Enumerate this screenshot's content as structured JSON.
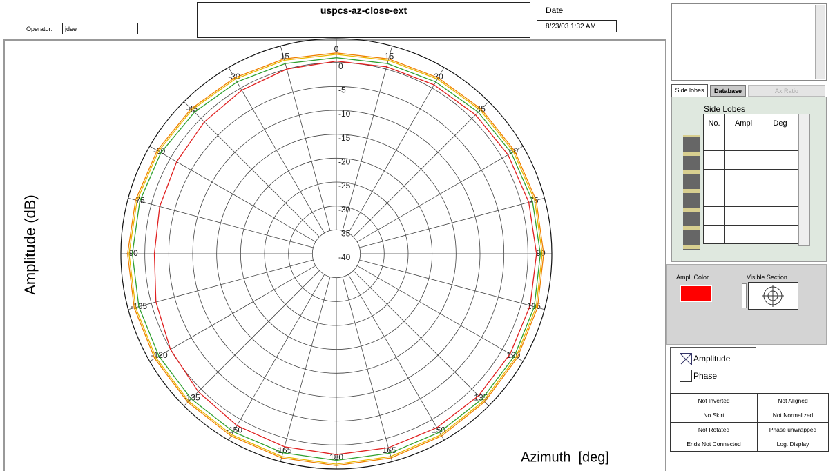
{
  "header": {
    "operator_label": "Operator:",
    "operator_value": "jdee",
    "title": "uspcs-az-close-ext",
    "date_label": "Date",
    "date_value": "8/23/03 1:32 AM"
  },
  "chart_data": {
    "type": "polar",
    "ylabel": "Amplitude (dB)",
    "xlabel": "Azimuth  [deg]",
    "rlim": [
      -40,
      5
    ],
    "rticks": [
      -40,
      -35,
      -30,
      -25,
      -20,
      -15,
      -10,
      -5,
      0
    ],
    "thetaticks": [
      0,
      15,
      30,
      45,
      60,
      75,
      90,
      105,
      120,
      135,
      150,
      165,
      180,
      -165,
      -150,
      -135,
      -120,
      -105,
      -90,
      -75,
      -60,
      -45,
      -30,
      -15
    ],
    "grid": true,
    "theta": [
      -180,
      -165,
      -150,
      -135,
      -120,
      -105,
      -90,
      -75,
      -60,
      -45,
      -30,
      -15,
      0,
      15,
      30,
      45,
      60,
      75,
      90,
      105,
      120,
      135,
      150,
      165,
      180
    ],
    "series": [
      {
        "color": "#f08000",
        "values": [
          4.3,
          4.2,
          4.0,
          3.9,
          3.8,
          3.7,
          3.6,
          3.4,
          3.2,
          2.9,
          2.5,
          2.2,
          2.0,
          2.2,
          2.5,
          2.8,
          3.0,
          3.2,
          3.3,
          3.5,
          3.6,
          3.8,
          4.0,
          4.2,
          4.3
        ]
      },
      {
        "color": "#e8b800",
        "values": [
          4.0,
          3.9,
          3.7,
          3.6,
          3.5,
          3.4,
          3.3,
          3.1,
          2.9,
          2.6,
          2.2,
          1.9,
          1.7,
          1.9,
          2.2,
          2.5,
          2.7,
          2.9,
          3.0,
          3.2,
          3.3,
          3.5,
          3.7,
          3.9,
          4.0
        ]
      },
      {
        "color": "#30a030",
        "values": [
          3.2,
          3.1,
          3.0,
          2.9,
          2.8,
          2.7,
          2.6,
          2.5,
          2.3,
          1.9,
          1.5,
          1.2,
          1.0,
          1.2,
          1.5,
          1.9,
          2.2,
          2.4,
          2.6,
          2.8,
          2.9,
          3.0,
          3.1,
          3.2,
          3.2
        ]
      },
      {
        "color": "#e02020",
        "values": [
          2.0,
          1.8,
          1.5,
          0.8,
          0.0,
          -1.0,
          -2.0,
          -1.8,
          -1.5,
          -1.0,
          -0.5,
          0.0,
          0.3,
          0.5,
          0.8,
          1.1,
          1.4,
          1.6,
          1.8,
          1.9,
          1.9,
          2.0,
          2.0,
          2.0,
          2.0
        ]
      }
    ]
  },
  "panel": {
    "tabs": [
      "Side lobes",
      "Database",
      "Ax Ratio"
    ],
    "side_lobes": {
      "title": "Side Lobes",
      "columns": [
        "No.",
        "Ampl",
        "Deg"
      ]
    },
    "ampl_color_label": "Ampl. Color",
    "visible_section_label": "Visible Section",
    "checkboxes": [
      "Amplitude",
      "Phase"
    ],
    "status": [
      [
        "Not Inverted",
        "Not Aligned"
      ],
      [
        "No Skirt",
        "Not Normalized"
      ],
      [
        "Not Rotated",
        "Phase unwrapped"
      ],
      [
        "Ends Not Connected",
        "Log. Display"
      ]
    ]
  }
}
